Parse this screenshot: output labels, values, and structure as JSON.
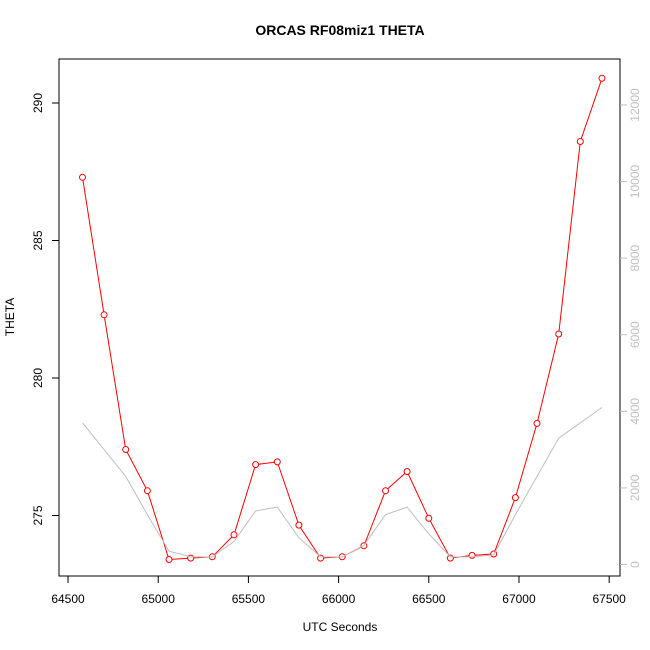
{
  "chart_data": {
    "type": "line",
    "title": "ORCAS RF08miz1 THETA",
    "xlabel": "UTC Seconds",
    "ylabel": "THETA",
    "xlim": [
      64450,
      67560
    ],
    "ylim": [
      272.8,
      291.6
    ],
    "y2lim": [
      -300,
      13200
    ],
    "x_ticks": [
      64500,
      65000,
      65500,
      66000,
      66500,
      67000,
      67500
    ],
    "y_ticks": [
      275,
      280,
      285,
      290
    ],
    "y2_ticks": [
      0,
      2000,
      4000,
      6000,
      8000,
      10000,
      12000
    ],
    "colors": {
      "theta": "#ff0000",
      "altitude": "#bfbfbf",
      "frame": "#000000"
    },
    "series": [
      {
        "axis": "left",
        "style": "line+points",
        "x": [
          64580,
          64700,
          64820,
          64940,
          65060,
          65180,
          65300,
          65420,
          65540,
          65660,
          65780,
          65900,
          66020,
          66140,
          66260,
          66380,
          66500,
          66620,
          66740,
          66860,
          66980,
          67100,
          67220,
          67340,
          67460
        ],
        "values": [
          287.3,
          282.3,
          277.4,
          275.9,
          273.4,
          273.45,
          273.5,
          274.3,
          276.85,
          276.95,
          274.65,
          273.45,
          273.5,
          273.9,
          275.9,
          276.6,
          274.9,
          273.45,
          273.55,
          273.6,
          275.65,
          278.35,
          281.6,
          288.6,
          290.9
        ]
      },
      {
        "axis": "right",
        "style": "line",
        "x": [
          64580,
          64820,
          64940,
          65060,
          65180,
          65300,
          65420,
          65540,
          65660,
          65780,
          65900,
          66020,
          66140,
          66260,
          66380,
          66500,
          66620,
          66740,
          66860,
          66980,
          67100,
          67220,
          67340,
          67460
        ],
        "values": [
          3700,
          2300,
          1300,
          350,
          200,
          200,
          600,
          1400,
          1500,
          700,
          200,
          200,
          500,
          1300,
          1500,
          800,
          200,
          200,
          250,
          1300,
          2300,
          3300,
          3700,
          4100
        ]
      }
    ]
  }
}
